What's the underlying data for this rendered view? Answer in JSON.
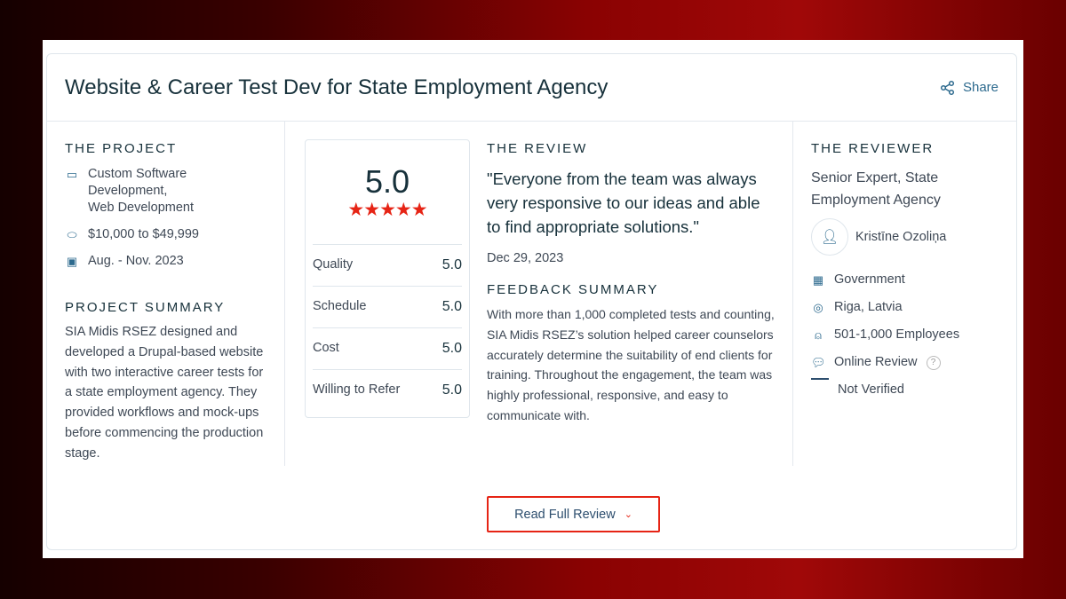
{
  "title": "Website & Career Test Dev for State Employment Agency",
  "share": "Share",
  "project": {
    "heading": "The Project",
    "services": [
      "Custom Software",
      "Development,",
      "Web Development"
    ],
    "budget": "$10,000 to $49,999",
    "dates": "Aug. - Nov. 2023"
  },
  "summary": {
    "heading": "Project Summary",
    "text": "SIA Midis RSEZ designed and developed a Drupal-based website with two interactive career tests for a state employment agency. They provided workflows and mock-ups before commencing the production stage."
  },
  "rating": {
    "overall": "5.0",
    "stars": 5,
    "rows": [
      {
        "label": "Quality",
        "value": "5.0"
      },
      {
        "label": "Schedule",
        "value": "5.0"
      },
      {
        "label": "Cost",
        "value": "5.0"
      },
      {
        "label": "Willing to Refer",
        "value": "5.0"
      }
    ]
  },
  "review": {
    "heading": "The Review",
    "quote": "\"Everyone from the team was always very responsive to our ideas and able to find appropriate solutions.\"",
    "date": "Dec 29, 2023",
    "feedback_heading": "Feedback Summary",
    "feedback": "With more than 1,000 completed tests and counting, SIA Midis RSEZ’s solution helped career counselors accurately determine the suitability of end clients for training. Throughout the engagement, the team was highly professional, responsive, and easy to communicate with."
  },
  "reviewer": {
    "heading": "The Reviewer",
    "role": "Senior Expert, State Employment Agency",
    "name": "Kristīne Ozoliņa",
    "industry": "Government",
    "location": "Riga, Latvia",
    "size": "501-1,000 Employees",
    "source": "Online Review",
    "verification": "Not Verified"
  },
  "read_more": "Read Full Review",
  "colors": {
    "accent": "#e62415",
    "link": "#2d6a8e"
  }
}
